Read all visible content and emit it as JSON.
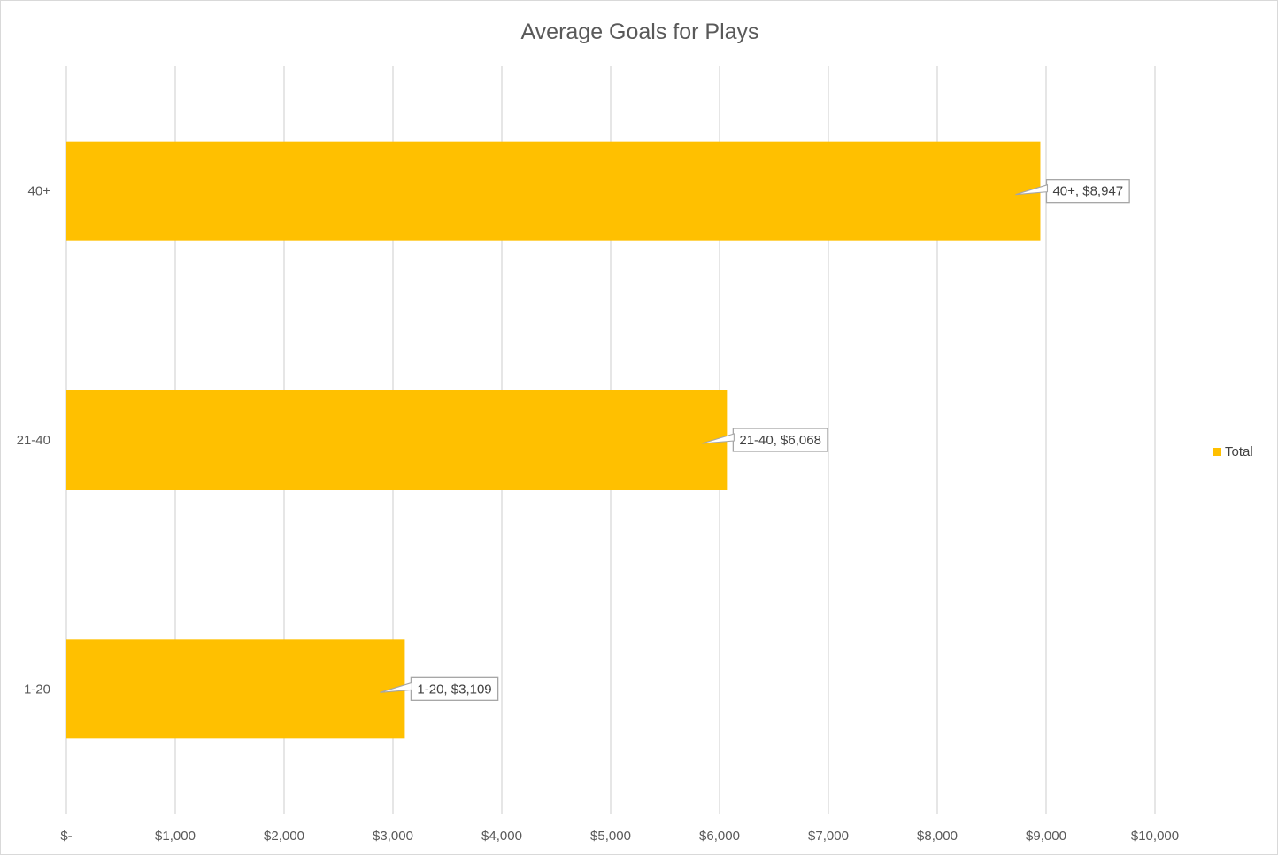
{
  "chart_data": {
    "type": "bar",
    "orientation": "horizontal",
    "title": "Average Goals for Plays",
    "categories": [
      "1-20",
      "21-40",
      "40+"
    ],
    "series": [
      {
        "name": "Total",
        "values": [
          3109,
          6068,
          8947
        ],
        "color": "#FFC000"
      }
    ],
    "data_labels": [
      "1-20,  $3,109",
      "21-40,  $6,068",
      "40+,  $8,947"
    ],
    "x_ticks": [
      "$-",
      "$1,000",
      "$2,000",
      "$3,000",
      "$4,000",
      "$5,000",
      "$6,000",
      "$7,000",
      "$8,000",
      "$9,000",
      "$10,000"
    ],
    "xlim": [
      0,
      10000
    ],
    "xlabel": "",
    "ylabel": "",
    "grid": "vertical",
    "legend": {
      "position": "right",
      "entries": [
        "Total"
      ]
    }
  },
  "colors": {
    "bar": "#FFC000",
    "grid": "#d9d9d9",
    "text": "#595959",
    "label_border": "#a6a6a6"
  }
}
